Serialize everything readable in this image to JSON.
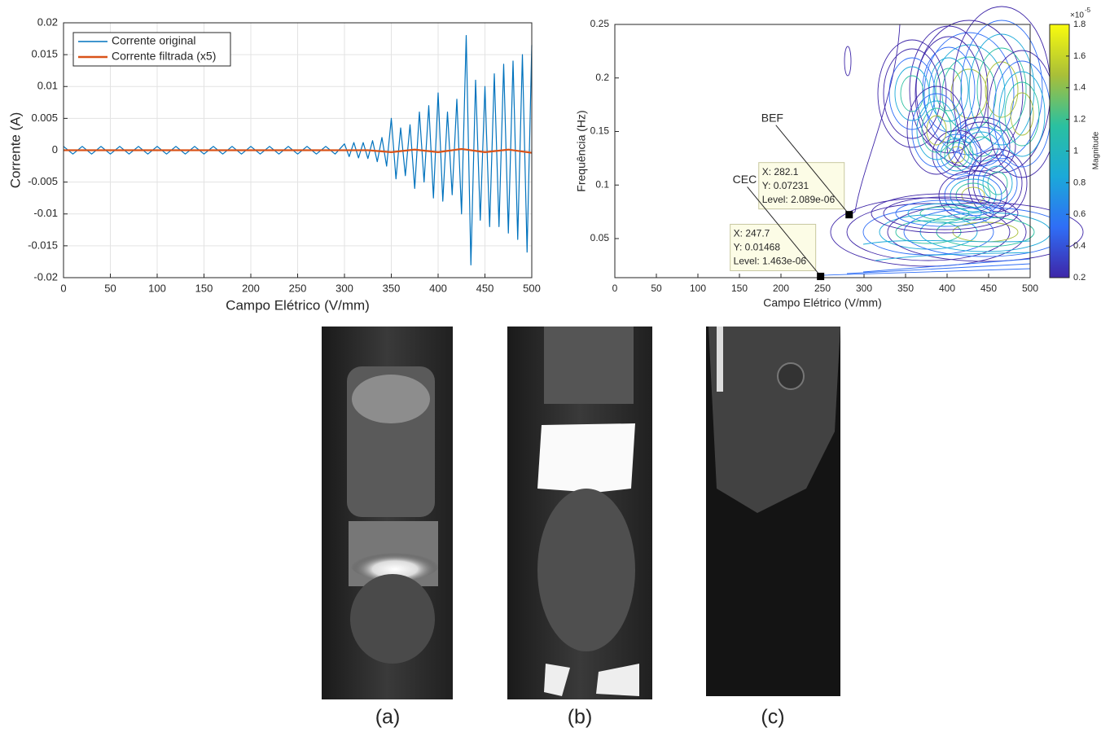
{
  "chart_data": [
    {
      "type": "line",
      "xlabel": "Campo Elétrico (V/mm)",
      "ylabel": "Corrente (A)",
      "xlim": [
        0,
        500
      ],
      "xticks": [
        0,
        50,
        100,
        150,
        200,
        250,
        300,
        350,
        400,
        450,
        500
      ],
      "ylim": [
        -0.02,
        0.02
      ],
      "yticks": [
        -0.02,
        -0.015,
        -0.01,
        -0.005,
        0,
        0.005,
        0.01,
        0.015,
        0.02
      ],
      "grid": true,
      "legend": "top-left",
      "series": [
        {
          "name": "Corrente original",
          "color": "#0072bd",
          "x": [
            0,
            10,
            20,
            30,
            40,
            50,
            60,
            70,
            80,
            90,
            100,
            110,
            120,
            130,
            140,
            150,
            160,
            170,
            180,
            190,
            200,
            210,
            220,
            230,
            240,
            250,
            260,
            270,
            280,
            290,
            300,
            305,
            310,
            315,
            320,
            325,
            330,
            335,
            340,
            345,
            350,
            355,
            360,
            365,
            370,
            375,
            380,
            385,
            390,
            395,
            400,
            405,
            410,
            415,
            420,
            425,
            430,
            435,
            440,
            445,
            450,
            455,
            460,
            465,
            470,
            475,
            480,
            485,
            490,
            495,
            500
          ],
          "values": [
            0.0006,
            -0.0006,
            0.0006,
            -0.0006,
            0.0006,
            -0.0006,
            0.0006,
            -0.0006,
            0.0006,
            -0.0006,
            0.0006,
            -0.0006,
            0.0006,
            -0.0006,
            0.0006,
            -0.0006,
            0.0006,
            -0.0006,
            0.0006,
            -0.0006,
            0.0006,
            -0.0006,
            0.0006,
            -0.0006,
            0.0006,
            -0.0006,
            0.0006,
            -0.0006,
            0.0006,
            -0.0006,
            0.001,
            -0.001,
            0.0012,
            -0.0012,
            0.0012,
            -0.0013,
            0.0015,
            -0.0018,
            0.002,
            -0.0025,
            0.005,
            -0.0045,
            0.0035,
            -0.004,
            0.004,
            -0.006,
            0.006,
            -0.005,
            0.007,
            -0.0075,
            0.009,
            -0.008,
            0.006,
            -0.007,
            0.008,
            -0.01,
            0.018,
            -0.018,
            0.011,
            -0.011,
            0.01,
            -0.012,
            0.012,
            -0.012,
            0.0135,
            -0.013,
            0.014,
            -0.014,
            0.015,
            -0.016,
            0.0165
          ]
        },
        {
          "name": "Corrente filtrada (x5)",
          "color": "#d95319",
          "x": [
            0,
            25,
            50,
            75,
            100,
            125,
            150,
            175,
            200,
            225,
            250,
            275,
            300,
            325,
            350,
            375,
            400,
            425,
            450,
            475,
            500
          ],
          "values": [
            0,
            0,
            0,
            0,
            0,
            0,
            0,
            0,
            0,
            0,
            0,
            0,
            0,
            0,
            -0.0003,
            0.0001,
            -0.0003,
            0.0002,
            -0.0003,
            0.0001,
            -0.0004
          ]
        }
      ]
    },
    {
      "type": "contour",
      "xlabel": "Campo Elétrico (V/mm)",
      "ylabel": "Frequência (Hz)",
      "xlim": [
        0,
        500
      ],
      "xticks": [
        0,
        50,
        100,
        150,
        200,
        250,
        300,
        350,
        400,
        450,
        500
      ],
      "ylim": [
        0.0135,
        0.25
      ],
      "yticks": [
        0.05,
        0.1,
        0.15,
        0.2,
        0.25
      ],
      "colorbar": {
        "label": "Magnitude",
        "base": "×10",
        "exponent": "-5",
        "lim": [
          0.2,
          1.8
        ],
        "ticks": [
          0.2,
          0.4,
          0.6,
          0.8,
          1,
          1.2,
          1.4,
          1.6,
          1.8
        ]
      },
      "datatips": [
        {
          "name": "BEF",
          "x": 282.1,
          "y": 0.07231,
          "x_label": "X: 282.1",
          "y_label": "Y: 0.07231",
          "level_label": "Level: 2.089e-06"
        },
        {
          "name": "CEC",
          "x": 247.7,
          "y": 0.01468,
          "x_label": "X: 247.7",
          "y_label": "Y: 0.01468",
          "level_label": "Level: 1.463e-06"
        }
      ]
    }
  ],
  "images": [
    {
      "caption": "(a)"
    },
    {
      "caption": "(b)"
    },
    {
      "caption": "(c)"
    }
  ]
}
